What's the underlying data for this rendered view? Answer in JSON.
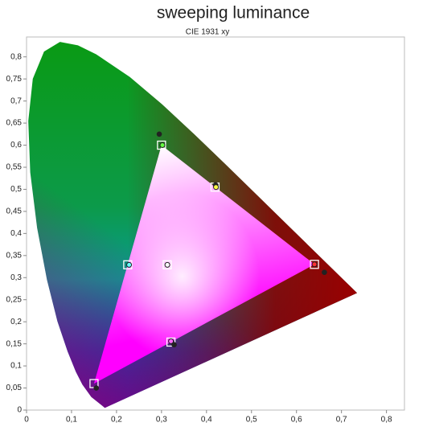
{
  "chart_data": {
    "type": "scatter",
    "title": "sweeping luminance",
    "subtitle": "CIE 1931 xy",
    "xlim": [
      0,
      0.84
    ],
    "ylim": [
      0,
      0.845
    ],
    "xticks": [
      0,
      {
        "value": 0.1,
        "label": "0,1"
      },
      {
        "value": 0.2,
        "label": "0,2"
      },
      {
        "value": 0.3,
        "label": "0,3"
      },
      {
        "value": 0.4,
        "label": "0,4"
      },
      {
        "value": 0.5,
        "label": "0,5"
      },
      {
        "value": 0.6,
        "label": "0,6"
      },
      {
        "value": 0.7,
        "label": "0,7"
      },
      {
        "value": 0.8,
        "label": "0,8"
      }
    ],
    "yticks": [
      0,
      {
        "value": 0.05,
        "label": "0,05"
      },
      {
        "value": 0.1,
        "label": "0,1"
      },
      {
        "value": 0.15,
        "label": "0,15"
      },
      {
        "value": 0.2,
        "label": "0,2"
      },
      {
        "value": 0.25,
        "label": "0,25"
      },
      {
        "value": 0.3,
        "label": "0,3"
      },
      {
        "value": 0.35,
        "label": "0,35"
      },
      {
        "value": 0.4,
        "label": "0,4"
      },
      {
        "value": 0.45,
        "label": "0,45"
      },
      {
        "value": 0.5,
        "label": "0,5"
      },
      {
        "value": 0.55,
        "label": "0,55"
      },
      {
        "value": 0.6,
        "label": "0,6"
      },
      {
        "value": 0.65,
        "label": "0,65"
      },
      {
        "value": 0.7,
        "label": "0,7"
      },
      {
        "value": 0.75,
        "label": "0,75"
      },
      {
        "value": 0.8,
        "label": "0,8"
      }
    ],
    "locus": {
      "x": [
        0.1741,
        0.144,
        0.1241,
        0.1096,
        0.0913,
        0.0687,
        0.0454,
        0.0235,
        0.0082,
        0.0039,
        0.0139,
        0.0389,
        0.0743,
        0.1142,
        0.1547,
        0.2296,
        0.3016,
        0.3731,
        0.4441,
        0.5125,
        0.5752,
        0.627,
        0.6915,
        0.7347
      ],
      "y": [
        0.005,
        0.0297,
        0.0578,
        0.0868,
        0.1327,
        0.2007,
        0.295,
        0.4127,
        0.5384,
        0.6548,
        0.7502,
        0.812,
        0.8338,
        0.8262,
        0.8059,
        0.7543,
        0.6923,
        0.6245,
        0.5547,
        0.4866,
        0.4242,
        0.3725,
        0.3083,
        0.2653
      ]
    },
    "series": [
      {
        "marker": "square",
        "color": "#ffffff",
        "x": [
          0.64,
          0.3,
          0.15,
          0.419,
          0.225,
          0.321,
          0.3127
        ],
        "values": [
          0.33,
          0.6,
          0.06,
          0.505,
          0.329,
          0.154,
          0.329
        ]
      },
      {
        "marker": "dot",
        "color": "#222222",
        "x": [
          0.295,
          0.42,
          0.662,
          0.328,
          0.155
        ],
        "values": [
          0.625,
          0.51,
          0.312,
          0.148,
          0.05
        ]
      },
      {
        "marker": "circle",
        "colors": [
          "#66ff44",
          "#ffff44",
          "#66ffff",
          "#ffffff",
          "#ff3333",
          "#ff66ff"
        ],
        "x": [
          0.302,
          0.421,
          0.228,
          0.313,
          0.64,
          0.321
        ],
        "values": [
          0.6,
          0.505,
          0.329,
          0.329,
          0.33,
          0.156
        ]
      }
    ]
  }
}
